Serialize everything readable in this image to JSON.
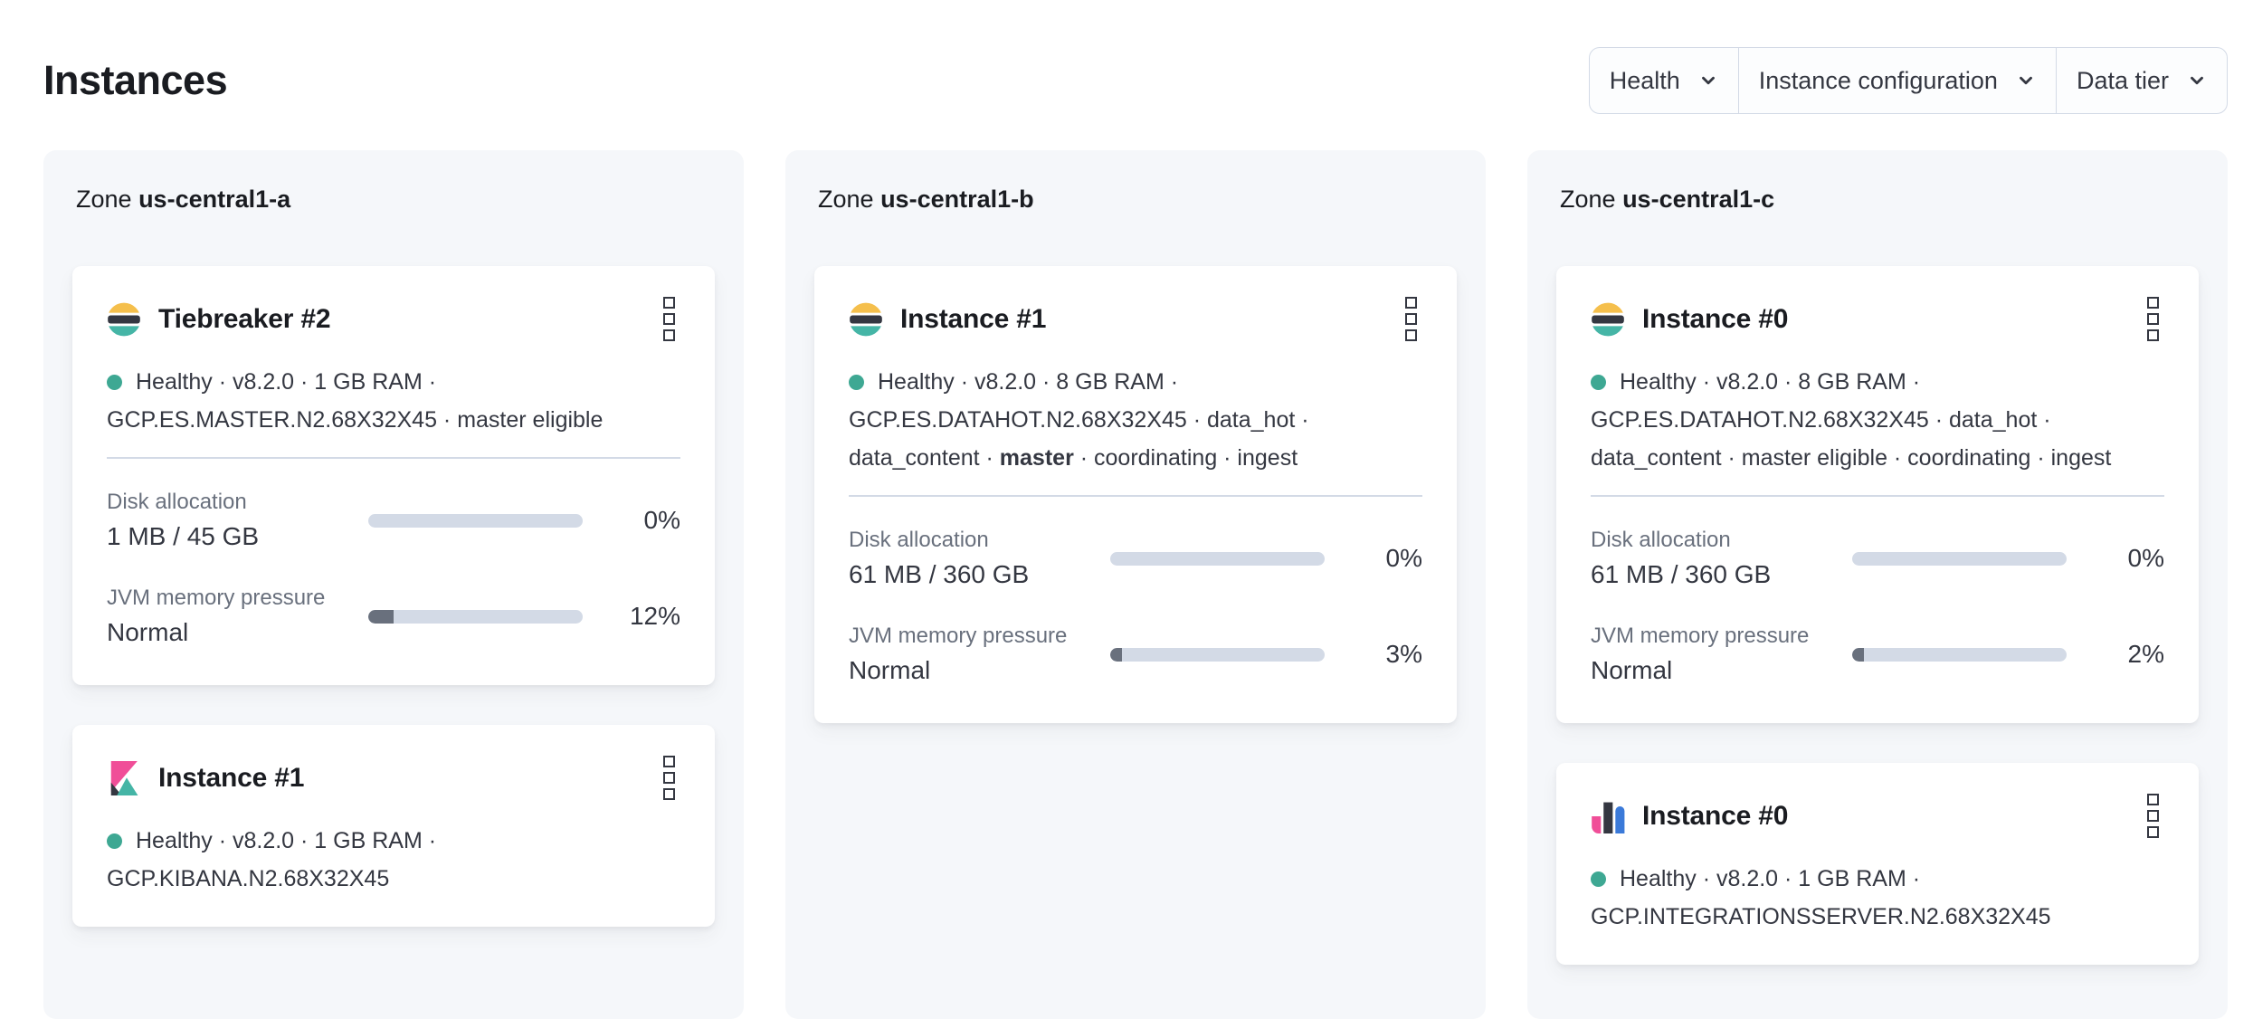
{
  "page": {
    "title": "Instances"
  },
  "filters": [
    {
      "label": "Health"
    },
    {
      "label": "Instance configuration"
    },
    {
      "label": "Data tier"
    }
  ],
  "zones": [
    {
      "label": "Zone",
      "name": "us-central1-a",
      "cards": [
        {
          "icon": "elasticsearch-logo-icon",
          "title": "Tiebreaker #2",
          "health": "Healthy",
          "status_lines": [
            {
              "pre": "Healthy · v8.2.0 · 1 GB RAM ·",
              "bold": "",
              "post": ""
            },
            {
              "pre": "GCP.ES.MASTER.N2.68X32X45 · master eligible",
              "bold": "",
              "post": ""
            }
          ],
          "metrics": [
            {
              "label": "Disk allocation",
              "value": "1 MB / 45 GB",
              "percent": "0%",
              "percent_value": 0
            },
            {
              "label": "JVM memory pressure",
              "value": "Normal",
              "percent": "12%",
              "percent_value": 12
            }
          ]
        },
        {
          "icon": "kibana-logo-icon",
          "title": "Instance #1",
          "health": "Healthy",
          "status_lines": [
            {
              "pre": "Healthy · v8.2.0 · 1 GB RAM ·",
              "bold": "",
              "post": ""
            },
            {
              "pre": "GCP.KIBANA.N2.68X32X45",
              "bold": "",
              "post": ""
            }
          ],
          "metrics": []
        }
      ]
    },
    {
      "label": "Zone",
      "name": "us-central1-b",
      "cards": [
        {
          "icon": "elasticsearch-logo-icon",
          "title": "Instance #1",
          "health": "Healthy",
          "status_lines": [
            {
              "pre": "Healthy · v8.2.0 · 8 GB RAM ·",
              "bold": "",
              "post": ""
            },
            {
              "pre": "GCP.ES.DATAHOT.N2.68X32X45 · data_hot ·",
              "bold": "",
              "post": ""
            },
            {
              "pre": "data_content · ",
              "bold": "master",
              "post": " · coordinating · ingest"
            }
          ],
          "metrics": [
            {
              "label": "Disk allocation",
              "value": "61 MB / 360 GB",
              "percent": "0%",
              "percent_value": 0
            },
            {
              "label": "JVM memory pressure",
              "value": "Normal",
              "percent": "3%",
              "percent_value": 3
            }
          ]
        }
      ]
    },
    {
      "label": "Zone",
      "name": "us-central1-c",
      "cards": [
        {
          "icon": "elasticsearch-logo-icon",
          "title": "Instance #0",
          "health": "Healthy",
          "status_lines": [
            {
              "pre": "Healthy · v8.2.0 · 8 GB RAM ·",
              "bold": "",
              "post": ""
            },
            {
              "pre": "GCP.ES.DATAHOT.N2.68X32X45 · data_hot ·",
              "bold": "",
              "post": ""
            },
            {
              "pre": "data_content · master eligible · coordinating · ingest",
              "bold": "",
              "post": ""
            }
          ],
          "metrics": [
            {
              "label": "Disk allocation",
              "value": "61 MB / 360 GB",
              "percent": "0%",
              "percent_value": 0
            },
            {
              "label": "JVM memory pressure",
              "value": "Normal",
              "percent": "2%",
              "percent_value": 2
            }
          ]
        },
        {
          "icon": "integrations-server-logo-icon",
          "title": "Instance #0",
          "health": "Healthy",
          "status_lines": [
            {
              "pre": "Healthy · v8.2.0 · 1 GB RAM ·",
              "bold": "",
              "post": ""
            },
            {
              "pre": "GCP.INTEGRATIONSSERVER.N2.68X32X45",
              "bold": "",
              "post": ""
            }
          ],
          "metrics": []
        }
      ]
    }
  ],
  "colors": {
    "healthy_dot": "#3EA893",
    "bar_track": "#D3DAE6",
    "bar_fill": "#69707D",
    "panel_bg": "#F5F7FA",
    "divider": "#D3DAE6",
    "text_dark": "#1A1C21",
    "text_body": "#343741",
    "text_subdued": "#69707D",
    "border": "#D3DAE6",
    "es_yellow": "#F5BF4C",
    "es_teal": "#45B5A6",
    "es_dark": "#343741",
    "kibana_pink": "#F04E98",
    "integrations_blue": "#3B7AD9"
  }
}
